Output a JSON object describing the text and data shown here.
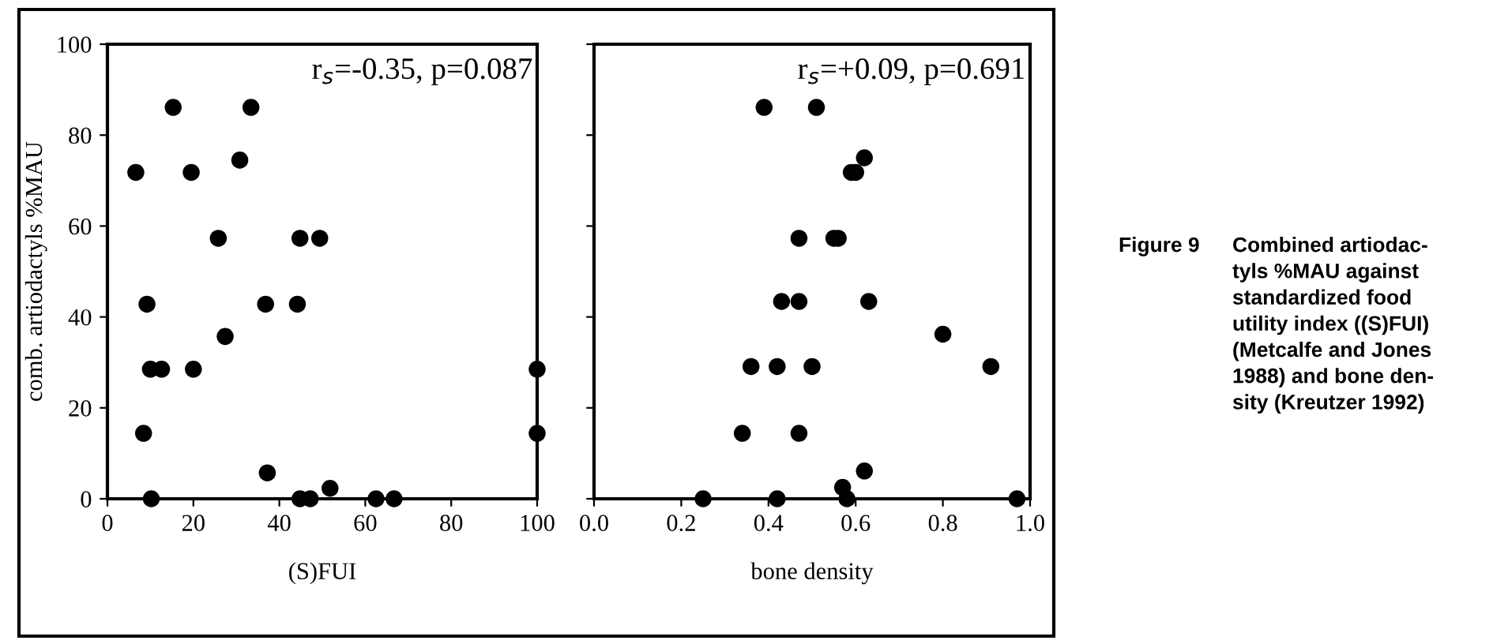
{
  "chart_data": [
    {
      "type": "scatter",
      "marker": "circle",
      "grid": false,
      "legend": false,
      "xlabel": "(S)FUI",
      "ylabel": "comb. artiodactyls %MAU",
      "annotations": [
        "r$_{s}$=-0.35, p=0.087"
      ],
      "xlim": [
        0,
        100
      ],
      "xticks": [
        0,
        20,
        40,
        60,
        80,
        100
      ],
      "ylim": [
        0,
        100
      ],
      "yticks": [
        0,
        20,
        40,
        60,
        80,
        100
      ],
      "series": [
        {
          "color": "#000000",
          "x": [
            6.6,
            9.2,
            10.0,
            12.6,
            8.4,
            10.2,
            15.3,
            19.5,
            20.0,
            25.8,
            27.4,
            30.8,
            33.4,
            36.8,
            37.2,
            44.2,
            44.8,
            44.8,
            47.2,
            49.4,
            51.8,
            62.5,
            66.7,
            100,
            100
          ],
          "values": [
            71.8,
            42.8,
            28.5,
            28.5,
            14.4,
            0,
            86.1,
            71.8,
            28.5,
            57.3,
            35.7,
            74.5,
            86.1,
            42.8,
            5.7,
            42.8,
            57.3,
            0,
            0,
            57.3,
            2.3,
            0,
            0,
            28.5,
            14.4
          ]
        }
      ]
    },
    {
      "type": "scatter",
      "marker": "circle",
      "grid": false,
      "legend": false,
      "xlabel": "bone density",
      "tick_labels": "x",
      "annotations": [
        "r$_{s}$=+0.09, p=0.691"
      ],
      "xlim": [
        0,
        1
      ],
      "xticks": [
        {
          "value": 0,
          "label": "0.0"
        },
        0.2,
        0.4,
        0.6,
        0.8,
        {
          "value": 1,
          "label": "1.0"
        }
      ],
      "ylim": [
        0,
        100
      ],
      "yticks": [
        {
          "value": 0,
          "label": null
        },
        {
          "value": 20,
          "label": null
        },
        {
          "value": 40,
          "label": null
        },
        {
          "value": 60,
          "label": null
        },
        {
          "value": 80,
          "label": null
        },
        {
          "value": 100,
          "label": null
        }
      ],
      "series": [
        {
          "color": "#000000",
          "x": [
            0.39,
            0.51,
            0.62,
            0.59,
            0.6,
            0.47,
            0.55,
            0.56,
            0.43,
            0.47,
            0.63,
            0.8,
            0.36,
            0.42,
            0.5,
            0.91,
            0.34,
            0.47,
            0.62,
            0.57,
            0.25,
            0.42,
            0.58,
            0.97
          ],
          "values": [
            86.1,
            86.1,
            75.0,
            71.8,
            71.8,
            57.3,
            57.3,
            57.3,
            43.4,
            43.4,
            43.4,
            36.2,
            29.1,
            29.1,
            29.1,
            29.1,
            14.4,
            14.4,
            6.1,
            2.5,
            0,
            0,
            0,
            0
          ]
        }
      ]
    },
    {
      "type": "other",
      "annotations": [
        "Figure 9",
        "Combined artiodac-\ntyls %MAU against\nstandardized food\nutility index ((S)FUI)\n(Metcalfe and Jones\n1988) and bone den-\nsity (Kreutzer 1992)"
      ]
    }
  ]
}
